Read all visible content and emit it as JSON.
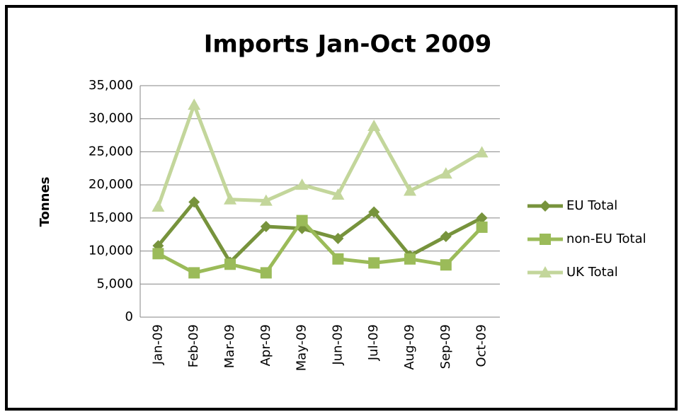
{
  "chart_data": {
    "type": "line",
    "title": "Imports Jan-Oct 2009",
    "y_label": "Tonnes",
    "categories": [
      "Jan-09",
      "Feb-09",
      "Mar-09",
      "Apr-09",
      "May-09",
      "Jun-09",
      "Jul-09",
      "Aug-09",
      "Sep-09",
      "Oct-09"
    ],
    "series": [
      {
        "name": "EU Total",
        "color": "#77933c",
        "marker": "diamond",
        "values": [
          10800,
          17400,
          8300,
          13700,
          13400,
          11900,
          15900,
          9300,
          12200,
          15000
        ]
      },
      {
        "name": "non-EU Total",
        "color": "#9bbb59",
        "marker": "square",
        "values": [
          9600,
          6700,
          8000,
          6700,
          14600,
          8800,
          8200,
          8800,
          7900,
          13600
        ]
      },
      {
        "name": "UK Total",
        "color": "#c3d69b",
        "marker": "triangle",
        "values": [
          16700,
          32100,
          17800,
          17600,
          20000,
          18500,
          28900,
          19100,
          21700,
          24900
        ]
      }
    ],
    "ylim": [
      0,
      35000
    ],
    "yticks": [
      0,
      {
        "value": 5000,
        "label": "5,000"
      },
      {
        "value": 10000,
        "label": "10,000"
      },
      {
        "value": 15000,
        "label": "15,000"
      },
      {
        "value": 20000,
        "label": "20,000"
      },
      {
        "value": 25000,
        "label": "25,000"
      },
      {
        "value": 30000,
        "label": "30,000"
      },
      {
        "value": 35000,
        "label": "35,000"
      }
    ],
    "grid": true,
    "legend": "right"
  }
}
